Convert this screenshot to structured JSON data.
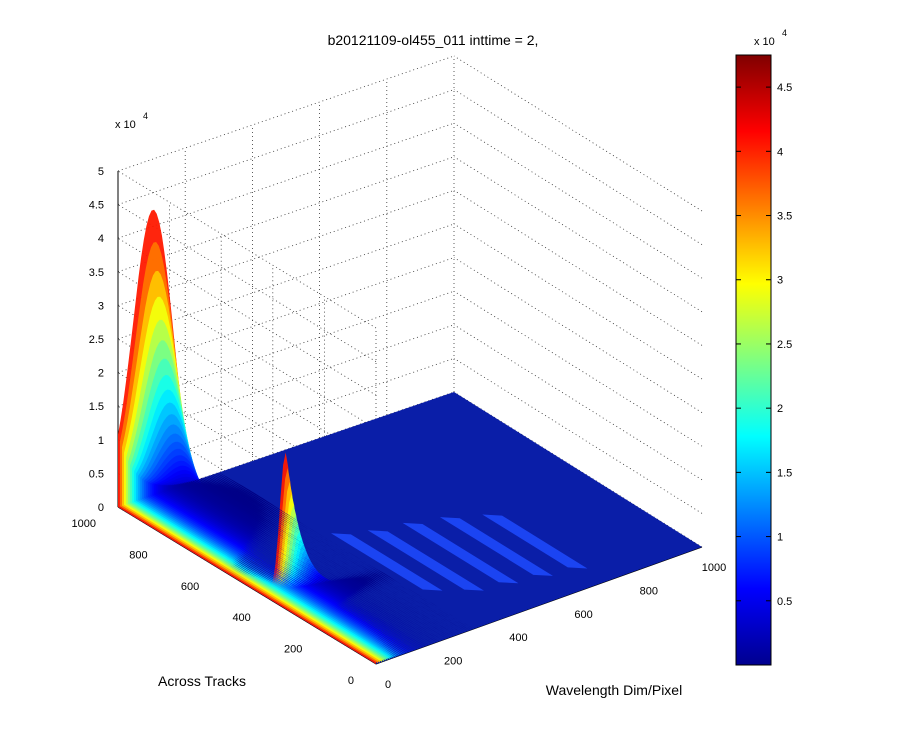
{
  "chart_data": {
    "type": "surface",
    "title": "b20121109-ol455_011 inttime = 2,",
    "xlabel": "Wavelength Dim/Pixel",
    "ylabel": "Across Tracks",
    "zlabel": "",
    "z_multiplier": "x 10",
    "z_exponent": "4",
    "xlim": [
      0,
      1000
    ],
    "ylim": [
      0,
      1000
    ],
    "zlim": [
      0,
      50000
    ],
    "x_ticks": [
      "0",
      "200",
      "400",
      "600",
      "800",
      "1000"
    ],
    "y_ticks": [
      "0",
      "200",
      "400",
      "600",
      "800",
      "1000"
    ],
    "z_ticks": [
      "0",
      "0.5",
      "1",
      "1.5",
      "2",
      "2.5",
      "3",
      "3.5",
      "4",
      "4.5",
      "5"
    ],
    "grid": true,
    "colormap": "jet",
    "colorbar": {
      "placement": "right",
      "multiplier": "x 10",
      "exponent": "4",
      "ticks": [
        "0.5",
        "1",
        "1.5",
        "2",
        "2.5",
        "3",
        "3.5",
        "4",
        "4.5"
      ],
      "range": [
        0,
        47500
      ]
    },
    "peaks": [
      {
        "x": 0,
        "y": 1000,
        "z": 47500
      },
      {
        "x": 0,
        "y": 350,
        "z": 22000
      }
    ]
  }
}
